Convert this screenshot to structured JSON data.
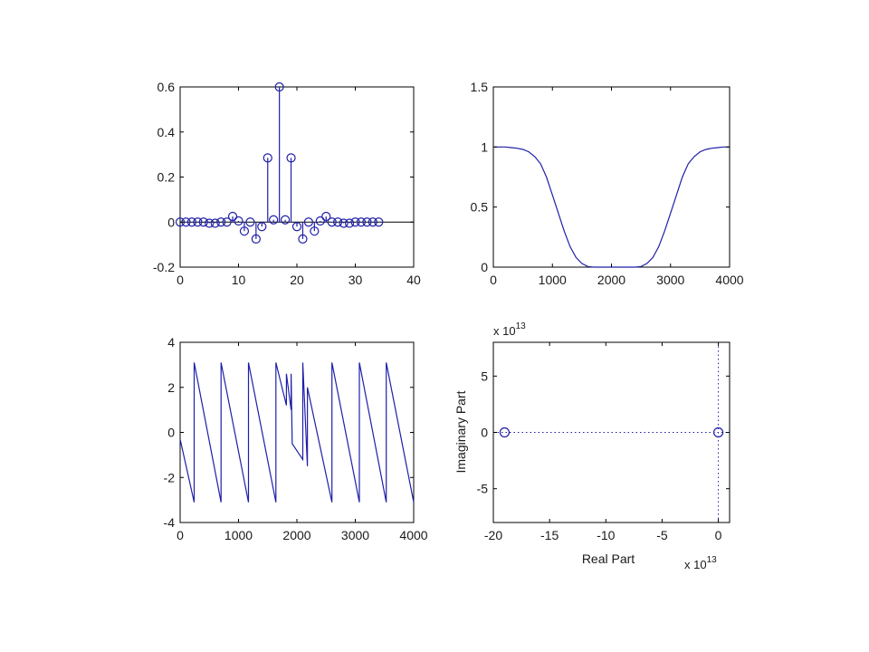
{
  "colors": {
    "line": "#1f1fa8",
    "axis": "#000000",
    "background": "#ffffff"
  },
  "chart_data": [
    {
      "type": "stem",
      "x": [
        0,
        1,
        2,
        3,
        4,
        5,
        6,
        7,
        8,
        9,
        10,
        11,
        12,
        13,
        14,
        15,
        16,
        17,
        18,
        19,
        20,
        21,
        22,
        23,
        24,
        25,
        26,
        27,
        28,
        29,
        30,
        31,
        32,
        33,
        34
      ],
      "values": [
        0,
        0,
        0,
        0,
        0,
        -0.005,
        -0.005,
        0,
        0,
        0.025,
        0.005,
        -0.04,
        0,
        -0.075,
        -0.02,
        0.285,
        0.01,
        0.6,
        0.01,
        0.285,
        -0.02,
        -0.075,
        0,
        -0.04,
        0.005,
        0.025,
        0,
        0,
        -0.005,
        -0.005,
        0,
        0,
        0,
        0,
        0
      ],
      "xlim": [
        0,
        40
      ],
      "ylim": [
        -0.2,
        0.6
      ],
      "xticks": [
        "0",
        "10",
        "20",
        "30",
        "40"
      ],
      "yticks": [
        "-0.2",
        "0",
        "0.2",
        "0.4",
        "0.6"
      ],
      "zero_line": true
    },
    {
      "type": "line",
      "x": [
        0,
        100,
        200,
        300,
        400,
        500,
        600,
        700,
        800,
        900,
        1000,
        1100,
        1200,
        1300,
        1400,
        1500,
        1600,
        1700,
        1800,
        1900,
        2000,
        2100,
        2200,
        2300,
        2400,
        2500,
        2600,
        2700,
        2800,
        2900,
        3000,
        3100,
        3200,
        3300,
        3400,
        3500,
        3600,
        3700,
        3800,
        3900,
        4000
      ],
      "values": [
        1,
        1,
        1,
        0.995,
        0.99,
        0.98,
        0.96,
        0.92,
        0.86,
        0.75,
        0.6,
        0.45,
        0.3,
        0.17,
        0.08,
        0.03,
        0.005,
        0,
        0,
        0,
        0,
        0,
        0,
        0,
        0,
        0.005,
        0.03,
        0.08,
        0.17,
        0.3,
        0.45,
        0.6,
        0.75,
        0.86,
        0.92,
        0.96,
        0.98,
        0.99,
        0.995,
        1,
        1
      ],
      "xlim": [
        0,
        4000
      ],
      "ylim": [
        0,
        1.5
      ],
      "xticks": [
        "0",
        "1000",
        "2000",
        "3000",
        "4000"
      ],
      "yticks": [
        "0",
        "0.5",
        "1",
        "1.5"
      ]
    },
    {
      "type": "line",
      "x": [
        0,
        240,
        240,
        700,
        700,
        1170,
        1170,
        1640,
        1640,
        1820,
        1820,
        1900,
        1900,
        1920,
        1920,
        2100,
        2100,
        2180,
        2180,
        2600,
        2600,
        3070,
        3070,
        3530,
        3530,
        4000
      ],
      "values": [
        -0.3,
        -3.1,
        3.1,
        -3.1,
        3.1,
        -3.1,
        3.1,
        -3.1,
        3.1,
        1.2,
        2.6,
        1.0,
        2.6,
        -0.5,
        -0.5,
        -1.2,
        3.1,
        -1.5,
        2.0,
        -3.1,
        3.1,
        -3.1,
        3.1,
        -3.1,
        3.1,
        -3.1
      ],
      "xlim": [
        0,
        4000
      ],
      "ylim": [
        -4,
        4
      ],
      "xticks": [
        "0",
        "1000",
        "2000",
        "3000",
        "4000"
      ],
      "yticks": [
        "-4",
        "-2",
        "0",
        "2",
        "4"
      ]
    },
    {
      "type": "scatter",
      "points": [
        {
          "x": -19,
          "y": 0
        },
        {
          "x": 0,
          "y": 0
        }
      ],
      "xlim": [
        -20,
        1
      ],
      "ylim": [
        -8,
        8
      ],
      "xticks": [
        "-20",
        "-15",
        "-10",
        "-5",
        "0"
      ],
      "yticks": [
        "-5",
        "0",
        "5"
      ],
      "xlabel": "Real Part",
      "ylabel": "Imaginary Part",
      "x_exponent": "x 10",
      "x_exponent_power": "13",
      "y_exponent": "x 10",
      "y_exponent_power": "13",
      "dotted_axes": true
    }
  ]
}
